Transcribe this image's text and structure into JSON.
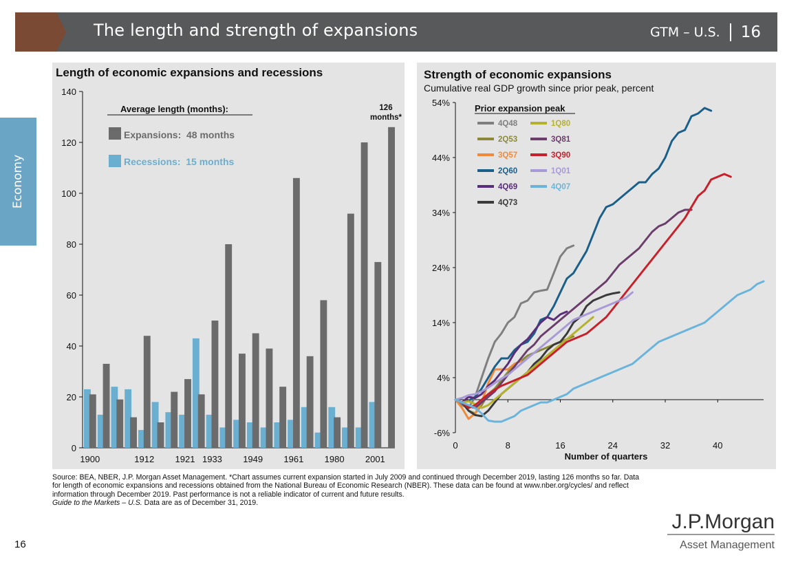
{
  "header": {
    "title": "The length and strength of expansions",
    "section": "GTM – U.S.",
    "page": "16"
  },
  "side_tab": {
    "label": "Economy"
  },
  "colors": {
    "header_bg": "#58595b",
    "arrow": "#7a4a34",
    "side_tab": "#6aa5c5",
    "panel_bg": "#e4e4e4",
    "expansion_bar": "#6b6b6b",
    "recession_bar": "#6aafcf"
  },
  "left_chart": {
    "title": "Length of economic expansions and recessions",
    "legend_heading": "Average length (months):",
    "legend_expansions": "Expansions:  48 months",
    "legend_recessions": "Recessions:  15 months",
    "callout_value": "126",
    "callout_unit": "months*"
  },
  "right_chart": {
    "title": "Strength of economic expansions",
    "subtitle": "Cumulative real GDP growth since prior peak, percent",
    "legend_heading": "Prior expansion peak",
    "xlabel": "Number of quarters"
  },
  "chart_data": [
    {
      "type": "bar",
      "title": "Length of economic expansions and recessions",
      "ylim": [
        0,
        140
      ],
      "yticks": [
        0,
        20,
        40,
        60,
        80,
        100,
        120,
        140
      ],
      "xtick_labels": [
        {
          "label": "1900",
          "index": 0
        },
        {
          "label": "1912",
          "index": 4
        },
        {
          "label": "1921",
          "index": 7
        },
        {
          "label": "1933",
          "index": 9
        },
        {
          "label": "1949",
          "index": 12
        },
        {
          "label": "1961",
          "index": 15
        },
        {
          "label": "1980",
          "index": 18
        },
        {
          "label": "2001",
          "index": 21
        }
      ],
      "series": [
        {
          "name": "Recessions",
          "color": "#6aafcf",
          "values": [
            23,
            13,
            24,
            23,
            7,
            18,
            14,
            13,
            43,
            13,
            8,
            11,
            10,
            8,
            10,
            11,
            16,
            6,
            16,
            8,
            8,
            18
          ]
        },
        {
          "name": "Expansions",
          "color": "#6b6b6b",
          "values": [
            21,
            33,
            19,
            12,
            44,
            10,
            22,
            27,
            21,
            50,
            80,
            37,
            45,
            39,
            24,
            106,
            36,
            58,
            12,
            92,
            120,
            73,
            126
          ]
        }
      ],
      "grid": false
    },
    {
      "type": "line",
      "title": "Strength of economic expansions",
      "subtitle": "Cumulative real GDP growth since prior peak, percent",
      "xlabel": "Number of quarters",
      "xlim": [
        0,
        47
      ],
      "xticks": [
        0,
        8,
        16,
        24,
        32,
        40
      ],
      "ylim": [
        -6,
        54
      ],
      "yticks": [
        -6,
        4,
        14,
        24,
        34,
        44,
        54
      ],
      "ytick_labels": [
        "-6%",
        "4%",
        "14%",
        "24%",
        "34%",
        "44%",
        "54%"
      ],
      "legend_title": "Prior expansion peak",
      "legend_placement": "top-left",
      "series": [
        {
          "name": "4Q48",
          "color": "#7f7f7f",
          "x": [
            0,
            1,
            2,
            3,
            4,
            5,
            6,
            7,
            8,
            9,
            10,
            11,
            12,
            13,
            14,
            15,
            16,
            17,
            18
          ],
          "y": [
            0,
            -1,
            -1.5,
            0.5,
            4,
            7.5,
            10.5,
            12,
            14,
            15,
            17.5,
            18,
            19.5,
            19.8,
            20,
            23,
            26,
            27.5,
            28
          ]
        },
        {
          "name": "2Q53",
          "color": "#8a8a3a",
          "x": [
            0,
            1,
            2,
            3,
            4,
            5,
            6,
            7,
            8,
            9,
            10,
            11,
            12,
            13,
            14,
            15,
            16,
            17,
            18
          ],
          "y": [
            0,
            -0.5,
            -2,
            -2.5,
            -1,
            1,
            2,
            3.5,
            5,
            6.5,
            7,
            8,
            8.5,
            9,
            9.5,
            10,
            10.5,
            11,
            11.5
          ]
        },
        {
          "name": "3Q57",
          "color": "#f08a3a",
          "x": [
            0,
            1,
            2,
            3,
            4,
            5,
            6,
            7,
            8,
            9,
            10
          ],
          "y": [
            0,
            -1.5,
            -3.5,
            -2.5,
            -0.5,
            3,
            5.5,
            5.5,
            5.5,
            6.5,
            7
          ]
        },
        {
          "name": "2Q60",
          "color": "#1a5f8a",
          "x": [
            0,
            1,
            2,
            3,
            4,
            5,
            6,
            7,
            8,
            9,
            10,
            11,
            12,
            13,
            14,
            15,
            16,
            17,
            18,
            19,
            20,
            21,
            22,
            23,
            24,
            25,
            26,
            27,
            28,
            29,
            30,
            31,
            32,
            33,
            34,
            35,
            36,
            37,
            38,
            39
          ],
          "y": [
            0,
            -0.5,
            -0.2,
            0.5,
            2,
            4,
            6,
            7.5,
            7.5,
            9,
            10,
            10.5,
            12,
            14.5,
            15,
            17,
            19.5,
            22,
            23,
            25,
            27,
            30,
            33,
            35,
            35.5,
            36.5,
            37.5,
            38.5,
            39.5,
            39.5,
            41,
            42,
            44,
            47,
            48.5,
            49,
            51.5,
            52,
            53,
            52.5
          ]
        },
        {
          "name": "4Q69",
          "color": "#5a2d7a",
          "x": [
            0,
            1,
            2,
            3,
            4,
            5,
            6,
            7,
            8,
            9,
            10,
            11,
            12,
            13,
            14,
            15,
            16,
            17
          ],
          "y": [
            0,
            -0.5,
            0.5,
            0.3,
            1,
            2.5,
            3.5,
            5,
            6.5,
            8.5,
            10,
            11,
            12.5,
            14,
            15,
            14.5,
            15.5,
            16
          ]
        },
        {
          "name": "4Q73",
          "color": "#3a3a3a",
          "x": [
            0,
            1,
            2,
            3,
            4,
            5,
            6,
            7,
            8,
            9,
            10,
            11,
            12,
            13,
            14,
            15,
            16,
            17,
            18,
            19,
            20,
            21,
            22,
            23,
            24,
            25
          ],
          "y": [
            0,
            -0.5,
            -2,
            -2.8,
            -3,
            -2,
            -0.5,
            1,
            2,
            3,
            4,
            5,
            6.5,
            7.5,
            9,
            10,
            10.5,
            12,
            14,
            15,
            17,
            18,
            18.5,
            19,
            19.3,
            19.5
          ]
        },
        {
          "name": "1Q80",
          "color": "#b5b12e",
          "x": [
            0,
            1,
            2,
            3,
            4,
            5,
            6,
            7,
            8,
            9,
            10,
            11,
            12,
            13,
            14,
            15,
            16,
            17,
            18,
            19,
            20,
            21
          ],
          "y": [
            0,
            -0.5,
            -0.3,
            -0.8,
            -1.5,
            -1,
            0,
            1,
            2,
            3,
            4,
            5,
            6,
            7,
            8,
            9,
            10,
            11,
            12,
            13,
            14,
            15
          ]
        },
        {
          "name": "3Q81",
          "color": "#6b3d6b",
          "x": [
            0,
            1,
            2,
            3,
            4,
            5,
            6,
            7,
            8,
            9,
            10,
            11,
            12,
            13,
            14,
            15,
            16,
            17,
            18,
            19,
            20,
            21,
            22,
            23,
            24,
            25,
            26,
            27,
            28,
            29,
            30,
            31,
            32,
            33,
            34,
            35,
            36
          ],
          "y": [
            0,
            -0.5,
            -1.2,
            -1.5,
            -0.5,
            0.5,
            1.5,
            3,
            4.5,
            6,
            7.5,
            9,
            10,
            11.5,
            12.5,
            13.5,
            14.5,
            15.5,
            16.5,
            17.5,
            18.5,
            19.5,
            20.5,
            21.5,
            23,
            24.5,
            25.5,
            26.5,
            27.5,
            29,
            30.5,
            31.5,
            32,
            33,
            34,
            34.5,
            34.5
          ]
        },
        {
          "name": "3Q90",
          "color": "#c8202a",
          "x": [
            0,
            1,
            2,
            3,
            4,
            5,
            6,
            7,
            8,
            9,
            10,
            11,
            12,
            13,
            14,
            15,
            16,
            17,
            18,
            19,
            20,
            21,
            22,
            23,
            24,
            25,
            26,
            27,
            28,
            29,
            30,
            31,
            32,
            33,
            34,
            35,
            36,
            37,
            38,
            39,
            40,
            41,
            42
          ],
          "y": [
            0,
            -0.5,
            -1.5,
            -1,
            0,
            1,
            1.8,
            2.5,
            3,
            3.5,
            4,
            4.5,
            5.5,
            6.5,
            7.5,
            8.5,
            9.5,
            10.5,
            11,
            11.5,
            12,
            13,
            14,
            15,
            16.5,
            18,
            19.5,
            21,
            22.5,
            24,
            25.5,
            27,
            28.5,
            30,
            31.5,
            33,
            35,
            37,
            38,
            40,
            40.5,
            41,
            40.5
          ]
        },
        {
          "name": "1Q01",
          "color": "#a89ad6",
          "x": [
            0,
            1,
            2,
            3,
            4,
            5,
            6,
            7,
            8,
            9,
            10,
            11,
            12,
            13,
            14,
            15,
            16,
            17,
            18,
            19,
            20,
            21,
            22,
            23,
            24,
            25,
            26,
            27
          ],
          "y": [
            0,
            0.3,
            0.8,
            1,
            1.5,
            2.2,
            3,
            3.8,
            4.5,
            5.5,
            6.5,
            7.5,
            8.5,
            9.5,
            10.5,
            11.5,
            12.5,
            13.5,
            14.5,
            15,
            15.5,
            16,
            16.5,
            17,
            17.5,
            18,
            18.5,
            19.5
          ]
        },
        {
          "name": "4Q07",
          "color": "#6ab4dc",
          "x": [
            0,
            1,
            2,
            3,
            4,
            5,
            6,
            7,
            8,
            9,
            10,
            11,
            12,
            13,
            14,
            15,
            16,
            17,
            18,
            19,
            20,
            21,
            22,
            23,
            24,
            25,
            26,
            27,
            28,
            29,
            30,
            31,
            32,
            33,
            34,
            35,
            36,
            37,
            38,
            39,
            40,
            41,
            42,
            43,
            44,
            45,
            46,
            47
          ],
          "y": [
            0,
            -0.5,
            -1,
            -1.5,
            -2.5,
            -3.8,
            -4,
            -4,
            -3.5,
            -3,
            -2,
            -1.5,
            -1,
            -0.5,
            -0.5,
            0,
            0.5,
            1,
            2,
            2.5,
            3,
            3.5,
            4,
            4.5,
            5,
            5.5,
            6,
            6.5,
            7.5,
            8.5,
            9.5,
            10.5,
            11,
            11.5,
            12,
            12.5,
            13,
            13.5,
            14,
            15,
            16,
            17,
            18,
            19,
            19.5,
            20,
            21,
            21.5
          ]
        }
      ]
    }
  ],
  "footnote": {
    "source": "Source: BEA, NBER, J.P. Morgan Asset Management. *Chart assumes current expansion started in July 2009 and continued through December 2019, lasting 126 months so far. Data for length of economic expansions and recessions obtained from the National Bureau of Economic Research (NBER). These data can be found at www.nber.org/cycles/ and reflect information through December 2019. Past performance is not a reliable indicator of current and future results.",
    "guide_title": "Guide to the Markets – U.S.",
    "guide_rest": " Data are as of December 31, 2019."
  },
  "page_number": "16",
  "logo": {
    "brand": "J.P.Morgan",
    "sub": "Asset Management"
  }
}
